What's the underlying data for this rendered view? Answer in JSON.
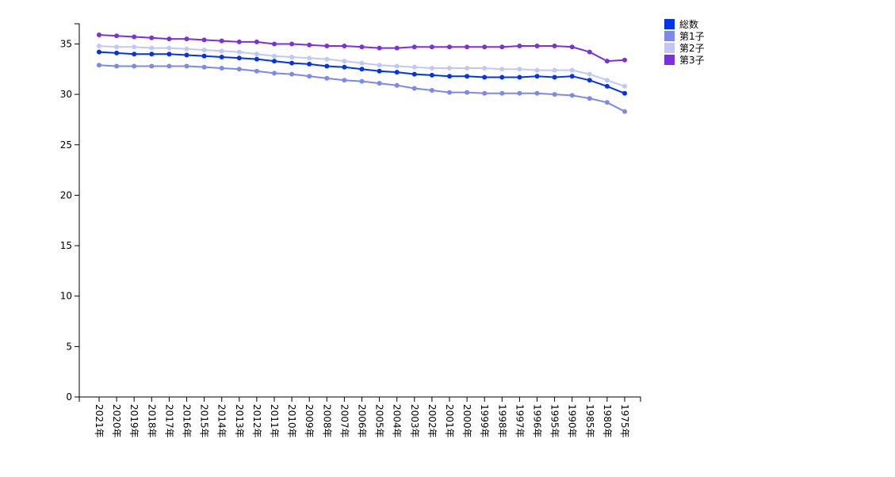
{
  "chart_data": {
    "type": "line",
    "categories": [
      "2021年",
      "2020年",
      "2019年",
      "2018年",
      "2017年",
      "2016年",
      "2015年",
      "2014年",
      "2013年",
      "2012年",
      "2011年",
      "2010年",
      "2009年",
      "2008年",
      "2007年",
      "2006年",
      "2005年",
      "2004年",
      "2003年",
      "2002年",
      "2001年",
      "2000年",
      "1999年",
      "1998年",
      "1997年",
      "1996年",
      "1995年",
      "1990年",
      "1985年",
      "1980年",
      "1975年"
    ],
    "ylim": [
      0,
      37
    ],
    "yticks": [
      0,
      5,
      10,
      15,
      20,
      25,
      30,
      35
    ],
    "grid": false,
    "legend_position": "top-right",
    "series": [
      {
        "name": "総数",
        "color": "#0033ee",
        "values": [
          34.2,
          34.1,
          34.0,
          34.0,
          34.0,
          33.9,
          33.8,
          33.7,
          33.6,
          33.5,
          33.3,
          33.1,
          33.0,
          32.8,
          32.7,
          32.5,
          32.3,
          32.2,
          32.0,
          31.9,
          31.8,
          31.8,
          31.7,
          31.7,
          31.7,
          31.8,
          31.7,
          31.8,
          31.4,
          30.8,
          30.1
        ]
      },
      {
        "name": "第1子",
        "color": "#7b88ee",
        "values": [
          32.9,
          32.8,
          32.8,
          32.8,
          32.8,
          32.8,
          32.7,
          32.6,
          32.5,
          32.3,
          32.1,
          32.0,
          31.8,
          31.6,
          31.4,
          31.3,
          31.1,
          30.9,
          30.6,
          30.4,
          30.2,
          30.2,
          30.1,
          30.1,
          30.1,
          30.1,
          30.0,
          29.9,
          29.6,
          29.2,
          28.3
        ]
      },
      {
        "name": "第2子",
        "color": "#c2c8f5",
        "values": [
          34.8,
          34.7,
          34.7,
          34.6,
          34.6,
          34.5,
          34.4,
          34.3,
          34.2,
          34.0,
          33.8,
          33.7,
          33.6,
          33.5,
          33.3,
          33.1,
          32.9,
          32.8,
          32.7,
          32.6,
          32.6,
          32.6,
          32.6,
          32.5,
          32.5,
          32.4,
          32.4,
          32.4,
          32.0,
          31.4,
          30.8
        ]
      },
      {
        "name": "第3子",
        "color": "#7b2fe0",
        "values": [
          35.9,
          35.8,
          35.7,
          35.6,
          35.5,
          35.5,
          35.4,
          35.3,
          35.2,
          35.2,
          35.0,
          35.0,
          34.9,
          34.8,
          34.8,
          34.7,
          34.6,
          34.6,
          34.7,
          34.7,
          34.7,
          34.7,
          34.7,
          34.7,
          34.8,
          34.8,
          34.8,
          34.7,
          34.2,
          33.3,
          33.4
        ]
      }
    ]
  }
}
